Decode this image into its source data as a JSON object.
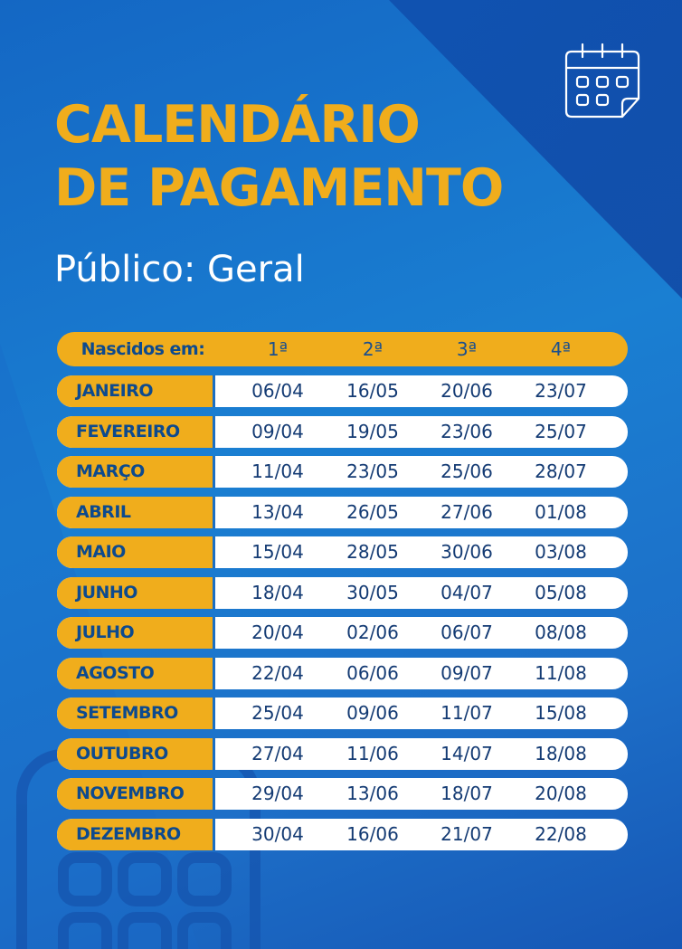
{
  "title": {
    "line1": "CALENDÁRIO",
    "line2": "DE PAGAMENTO"
  },
  "subtitle": "Público: Geral",
  "icons": {
    "top": "calendar-icon",
    "background": "phone-keypad-icon"
  },
  "colors": {
    "background": "#1a7fd2",
    "accent": "#f0ad1c",
    "text_dark": "#0d4a8e",
    "row_bg": "#ffffff"
  },
  "table": {
    "header": {
      "label": "Nascidos em:",
      "columns": [
        "1ª",
        "2ª",
        "3ª",
        "4ª"
      ]
    },
    "rows": [
      {
        "month": "JANEIRO",
        "dates": [
          "06/04",
          "16/05",
          "20/06",
          "23/07"
        ]
      },
      {
        "month": "FEVEREIRO",
        "dates": [
          "09/04",
          "19/05",
          "23/06",
          "25/07"
        ]
      },
      {
        "month": "MARÇO",
        "dates": [
          "11/04",
          "23/05",
          "25/06",
          "28/07"
        ]
      },
      {
        "month": "ABRIL",
        "dates": [
          "13/04",
          "26/05",
          "27/06",
          "01/08"
        ]
      },
      {
        "month": "MAIO",
        "dates": [
          "15/04",
          "28/05",
          "30/06",
          "03/08"
        ]
      },
      {
        "month": "JUNHO",
        "dates": [
          "18/04",
          "30/05",
          "04/07",
          "05/08"
        ]
      },
      {
        "month": "JULHO",
        "dates": [
          "20/04",
          "02/06",
          "06/07",
          "08/08"
        ]
      },
      {
        "month": "AGOSTO",
        "dates": [
          "22/04",
          "06/06",
          "09/07",
          "11/08"
        ]
      },
      {
        "month": "SETEMBRO",
        "dates": [
          "25/04",
          "09/06",
          "11/07",
          "15/08"
        ]
      },
      {
        "month": "OUTUBRO",
        "dates": [
          "27/04",
          "11/06",
          "14/07",
          "18/08"
        ]
      },
      {
        "month": "NOVEMBRO",
        "dates": [
          "29/04",
          "13/06",
          "18/07",
          "20/08"
        ]
      },
      {
        "month": "DEZEMBRO",
        "dates": [
          "30/04",
          "16/06",
          "21/07",
          "22/08"
        ]
      }
    ]
  }
}
